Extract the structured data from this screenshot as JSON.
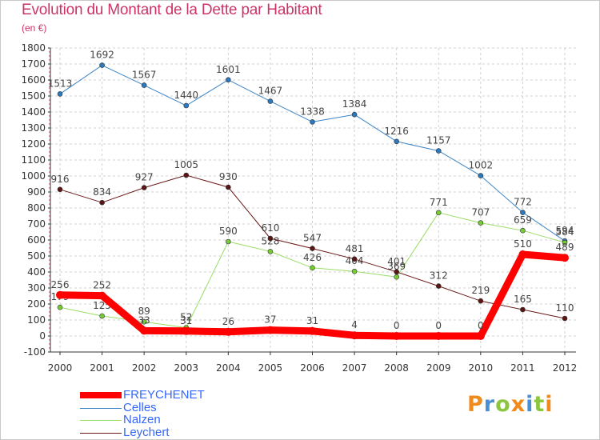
{
  "chart_data": {
    "type": "line",
    "title": "Evolution du Montant de la Dette par Habitant",
    "subtitle": "(en €)",
    "x": [
      "2000",
      "2001",
      "2002",
      "2003",
      "2004",
      "2005",
      "2006",
      "2007",
      "2008",
      "2009",
      "2010",
      "2011",
      "2012"
    ],
    "ylim": [
      -100,
      1800
    ],
    "yticks": [
      -100,
      0,
      100,
      200,
      300,
      400,
      500,
      600,
      700,
      800,
      900,
      1000,
      1100,
      1200,
      1300,
      1400,
      1500,
      1600,
      1700,
      1800
    ],
    "series": [
      {
        "name": "Celles",
        "color": "#3d85c6",
        "marker": "#2a7ac2",
        "width": 1,
        "values": [
          1513,
          1692,
          1567,
          1440,
          1601,
          1467,
          1338,
          1384,
          1216,
          1157,
          1002,
          772,
          594
        ]
      },
      {
        "name": "Nalzen",
        "color": "#99dd66",
        "marker": "#77cc33",
        "width": 1,
        "values": [
          179,
          125,
          89,
          52,
          590,
          528,
          426,
          404,
          369,
          771,
          707,
          659,
          584
        ]
      },
      {
        "name": "Leychert",
        "color": "#6b1a1a",
        "marker": "#5c1515",
        "width": 1,
        "values": [
          916,
          834,
          927,
          1005,
          930,
          610,
          547,
          481,
          401,
          312,
          219,
          165,
          110
        ]
      },
      {
        "name": "FREYCHENET",
        "color": "#ff0000",
        "marker": "#ff0000",
        "width": 9,
        "values": [
          256,
          252,
          33,
          31,
          26,
          37,
          31,
          4,
          0,
          0,
          0,
          510,
          489
        ]
      }
    ],
    "legend": [
      {
        "name": "FREYCHENET",
        "color": "#ff0000",
        "label_color": "#3366ff",
        "thick": true
      },
      {
        "name": "Celles",
        "color": "#3d85c6",
        "label_color": "#3366ff",
        "thick": false
      },
      {
        "name": "Nalzen",
        "color": "#99dd66",
        "label_color": "#3366ff",
        "thick": false
      },
      {
        "name": "Leychert",
        "color": "#6b1a1a",
        "label_color": "#3366ff",
        "thick": false
      }
    ],
    "legend_position": "bottom-left"
  },
  "brand": {
    "letters": [
      {
        "ch": "P",
        "color": "#f08a1c"
      },
      {
        "ch": "r",
        "color": "#4a8fd4"
      },
      {
        "ch": "o",
        "color": "#8cc63f"
      },
      {
        "ch": "x",
        "color": "#f08a1c"
      },
      {
        "ch": "i",
        "color": "#4a8fd4"
      },
      {
        "ch": "t",
        "color": "#8cc63f"
      },
      {
        "ch": "i",
        "color": "#f08a1c"
      }
    ]
  }
}
